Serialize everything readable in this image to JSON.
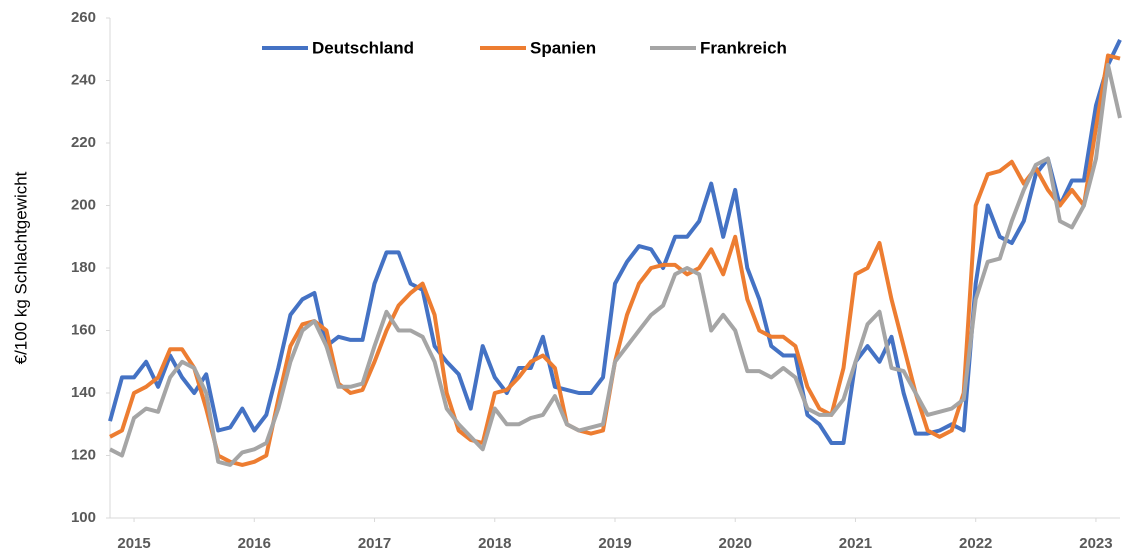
{
  "chart_data": {
    "type": "line",
    "y_label": "€/100 kg Schlachtgewicht",
    "x": [
      2014.8,
      2014.9,
      2015.0,
      2015.1,
      2015.2,
      2015.3,
      2015.4,
      2015.5,
      2015.6,
      2015.7,
      2015.8,
      2015.9,
      2016.0,
      2016.1,
      2016.2,
      2016.3,
      2016.4,
      2016.5,
      2016.6,
      2016.7,
      2016.8,
      2016.9,
      2017.0,
      2017.1,
      2017.2,
      2017.3,
      2017.4,
      2017.5,
      2017.6,
      2017.7,
      2017.8,
      2017.9,
      2018.0,
      2018.1,
      2018.2,
      2018.3,
      2018.4,
      2018.5,
      2018.6,
      2018.7,
      2018.8,
      2018.9,
      2019.0,
      2019.1,
      2019.2,
      2019.3,
      2019.4,
      2019.5,
      2019.6,
      2019.7,
      2019.8,
      2019.9,
      2020.0,
      2020.1,
      2020.2,
      2020.3,
      2020.4,
      2020.5,
      2020.6,
      2020.7,
      2020.8,
      2020.9,
      2021.0,
      2021.1,
      2021.2,
      2021.3,
      2021.4,
      2021.5,
      2021.6,
      2021.7,
      2021.8,
      2021.9,
      2022.0,
      2022.1,
      2022.2,
      2022.3,
      2022.4,
      2022.5,
      2022.6,
      2022.7,
      2022.8,
      2022.9,
      2023.0,
      2023.1,
      2023.2
    ],
    "series": [
      {
        "name": "Deutschland",
        "color": "#4472c4",
        "values": [
          131,
          145,
          145,
          150,
          142,
          152,
          145,
          140,
          146,
          128,
          129,
          135,
          128,
          133,
          148,
          165,
          170,
          172,
          155,
          158,
          157,
          157,
          175,
          185,
          185,
          175,
          173,
          155,
          150,
          146,
          135,
          155,
          145,
          140,
          148,
          148,
          158,
          142,
          141,
          140,
          140,
          145,
          175,
          182,
          187,
          186,
          180,
          190,
          190,
          195,
          207,
          190,
          205,
          180,
          170,
          155,
          152,
          152,
          133,
          130,
          124,
          124,
          150,
          155,
          150,
          158,
          140,
          127,
          127,
          128,
          130,
          128,
          175,
          200,
          190,
          188,
          195,
          210,
          215,
          200,
          208,
          208,
          232,
          245,
          253
        ]
      },
      {
        "name": "Spanien",
        "color": "#ed7d31",
        "values": [
          126,
          128,
          140,
          142,
          145,
          154,
          154,
          148,
          135,
          120,
          118,
          117,
          118,
          120,
          138,
          155,
          162,
          163,
          160,
          143,
          140,
          141,
          150,
          160,
          168,
          172,
          175,
          165,
          140,
          128,
          125,
          124,
          140,
          141,
          145,
          150,
          152,
          148,
          130,
          128,
          127,
          128,
          150,
          165,
          175,
          180,
          181,
          181,
          178,
          180,
          186,
          178,
          190,
          170,
          160,
          158,
          158,
          155,
          142,
          135,
          133,
          148,
          178,
          180,
          188,
          170,
          155,
          140,
          128,
          126,
          128,
          140,
          200,
          210,
          211,
          214,
          207,
          212,
          205,
          200,
          205,
          200,
          225,
          248,
          247
        ]
      },
      {
        "name": "Frankreich",
        "color": "#a5a5a5",
        "values": [
          122,
          120,
          132,
          135,
          134,
          145,
          150,
          148,
          140,
          118,
          117,
          121,
          122,
          124,
          135,
          150,
          160,
          163,
          155,
          142,
          142,
          143,
          155,
          166,
          160,
          160,
          158,
          150,
          135,
          130,
          126,
          122,
          135,
          130,
          130,
          132,
          133,
          139,
          130,
          128,
          129,
          130,
          150,
          155,
          160,
          165,
          168,
          178,
          180,
          178,
          160,
          165,
          160,
          147,
          147,
          145,
          148,
          145,
          135,
          133,
          133,
          138,
          150,
          162,
          166,
          148,
          147,
          140,
          133,
          134,
          135,
          138,
          170,
          182,
          183,
          195,
          205,
          213,
          215,
          195,
          193,
          200,
          215,
          245,
          228
        ]
      }
    ],
    "xlim": [
      2014.8,
      2023.2
    ],
    "xticks": [
      2015,
      2016,
      2017,
      2018,
      2019,
      2020,
      2021,
      2022,
      2023
    ],
    "ylim": [
      100,
      260
    ],
    "yticks": [
      100,
      120,
      140,
      160,
      180,
      200,
      220,
      240,
      260
    ],
    "legend": "top"
  }
}
